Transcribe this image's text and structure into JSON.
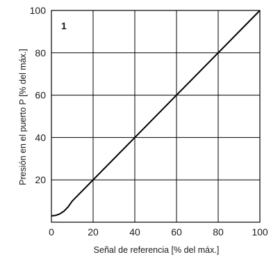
{
  "chart_data": {
    "type": "line",
    "panel_label": "1",
    "xlabel": "Señal de referencia [% del máx.]",
    "ylabel": "Presión en el puerto P [% del máx.]",
    "xlim": [
      0,
      100
    ],
    "ylim": [
      0,
      100
    ],
    "x_ticks": [
      0,
      20,
      40,
      60,
      80,
      100
    ],
    "y_ticks": [
      20,
      40,
      60,
      80,
      100
    ],
    "grid": true,
    "legend": "none",
    "series": [
      {
        "color": "#000000",
        "x": [
          0,
          2,
          4,
          6,
          8,
          10,
          20,
          40,
          60,
          80,
          100
        ],
        "y": [
          3,
          3.2,
          3.9,
          5.2,
          7.2,
          10,
          20,
          40,
          60,
          80,
          100
        ]
      }
    ]
  }
}
